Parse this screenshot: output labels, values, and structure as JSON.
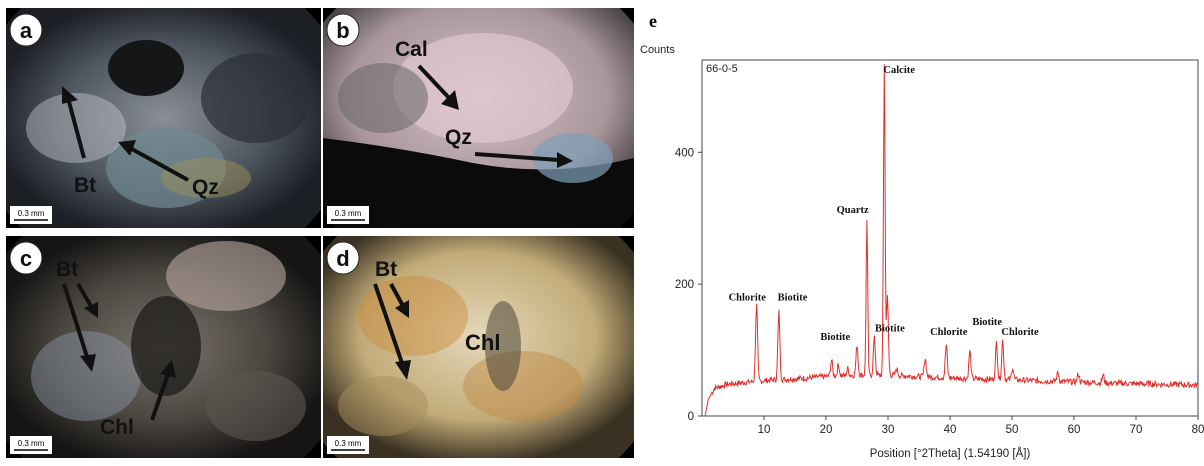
{
  "panels": [
    {
      "letter": "a",
      "scale": "0.3 mm",
      "labels": [
        "Bt",
        "Qz"
      ]
    },
    {
      "letter": "b",
      "scale": "0.3 mm",
      "labels": [
        "Cal",
        "Qz"
      ]
    },
    {
      "letter": "c",
      "scale": "0.3 mm",
      "labels": [
        "Bt",
        "Chl"
      ]
    },
    {
      "letter": "d",
      "scale": "0.3 mm",
      "labels": [
        "Bt",
        "Chl"
      ]
    }
  ],
  "chart_data": {
    "type": "line",
    "panel_letter": "e",
    "sample_label": "66-0-5",
    "ylabel": "Counts",
    "xlabel": "Position [°2Theta] (1.54190 [Å])",
    "xlim": [
      0,
      80
    ],
    "ylim": [
      0,
      540
    ],
    "xticks": [
      10,
      20,
      30,
      40,
      50,
      60,
      70,
      80
    ],
    "yticks": [
      0,
      200,
      400
    ],
    "line_color": "#e0302a",
    "baseline": [
      [
        0.5,
        0
      ],
      [
        1,
        25
      ],
      [
        2,
        42
      ],
      [
        4,
        48
      ],
      [
        6,
        50
      ],
      [
        8,
        52
      ],
      [
        12,
        55
      ],
      [
        16,
        57
      ],
      [
        20,
        60
      ],
      [
        25,
        62
      ],
      [
        30,
        62
      ],
      [
        35,
        60
      ],
      [
        40,
        58
      ],
      [
        45,
        56
      ],
      [
        50,
        55
      ],
      [
        55,
        53
      ],
      [
        60,
        52
      ],
      [
        65,
        50
      ],
      [
        70,
        49
      ],
      [
        75,
        48
      ],
      [
        80,
        47
      ]
    ],
    "peaks": [
      {
        "x": 8.8,
        "y": 168
      },
      {
        "x": 12.4,
        "y": 158
      },
      {
        "x": 20.9,
        "y": 85
      },
      {
        "x": 22.0,
        "y": 78
      },
      {
        "x": 23.5,
        "y": 72
      },
      {
        "x": 25.0,
        "y": 108
      },
      {
        "x": 26.6,
        "y": 296
      },
      {
        "x": 27.8,
        "y": 118
      },
      {
        "x": 29.4,
        "y": 534
      },
      {
        "x": 29.9,
        "y": 180
      },
      {
        "x": 31.4,
        "y": 72
      },
      {
        "x": 36.0,
        "y": 88
      },
      {
        "x": 39.4,
        "y": 108
      },
      {
        "x": 43.2,
        "y": 98
      },
      {
        "x": 47.5,
        "y": 112
      },
      {
        "x": 48.5,
        "y": 115
      },
      {
        "x": 50.1,
        "y": 74
      },
      {
        "x": 57.4,
        "y": 66
      },
      {
        "x": 60.7,
        "y": 64
      },
      {
        "x": 64.7,
        "y": 62
      }
    ],
    "annotations": [
      {
        "text": "Calcite",
        "x": 31.8,
        "y": 520
      },
      {
        "text": "Quartz",
        "x": 24.3,
        "y": 308
      },
      {
        "text": "Chlorite",
        "x": 7.3,
        "y": 175
      },
      {
        "text": "Biotite",
        "x": 14.6,
        "y": 175
      },
      {
        "text": "Biotite",
        "x": 21.5,
        "y": 115
      },
      {
        "text": "Biotite",
        "x": 30.3,
        "y": 128
      },
      {
        "text": "Chlorite",
        "x": 39.8,
        "y": 123
      },
      {
        "text": "Biotite",
        "x": 46.0,
        "y": 138
      },
      {
        "text": "Chlorite",
        "x": 51.3,
        "y": 123
      }
    ]
  }
}
